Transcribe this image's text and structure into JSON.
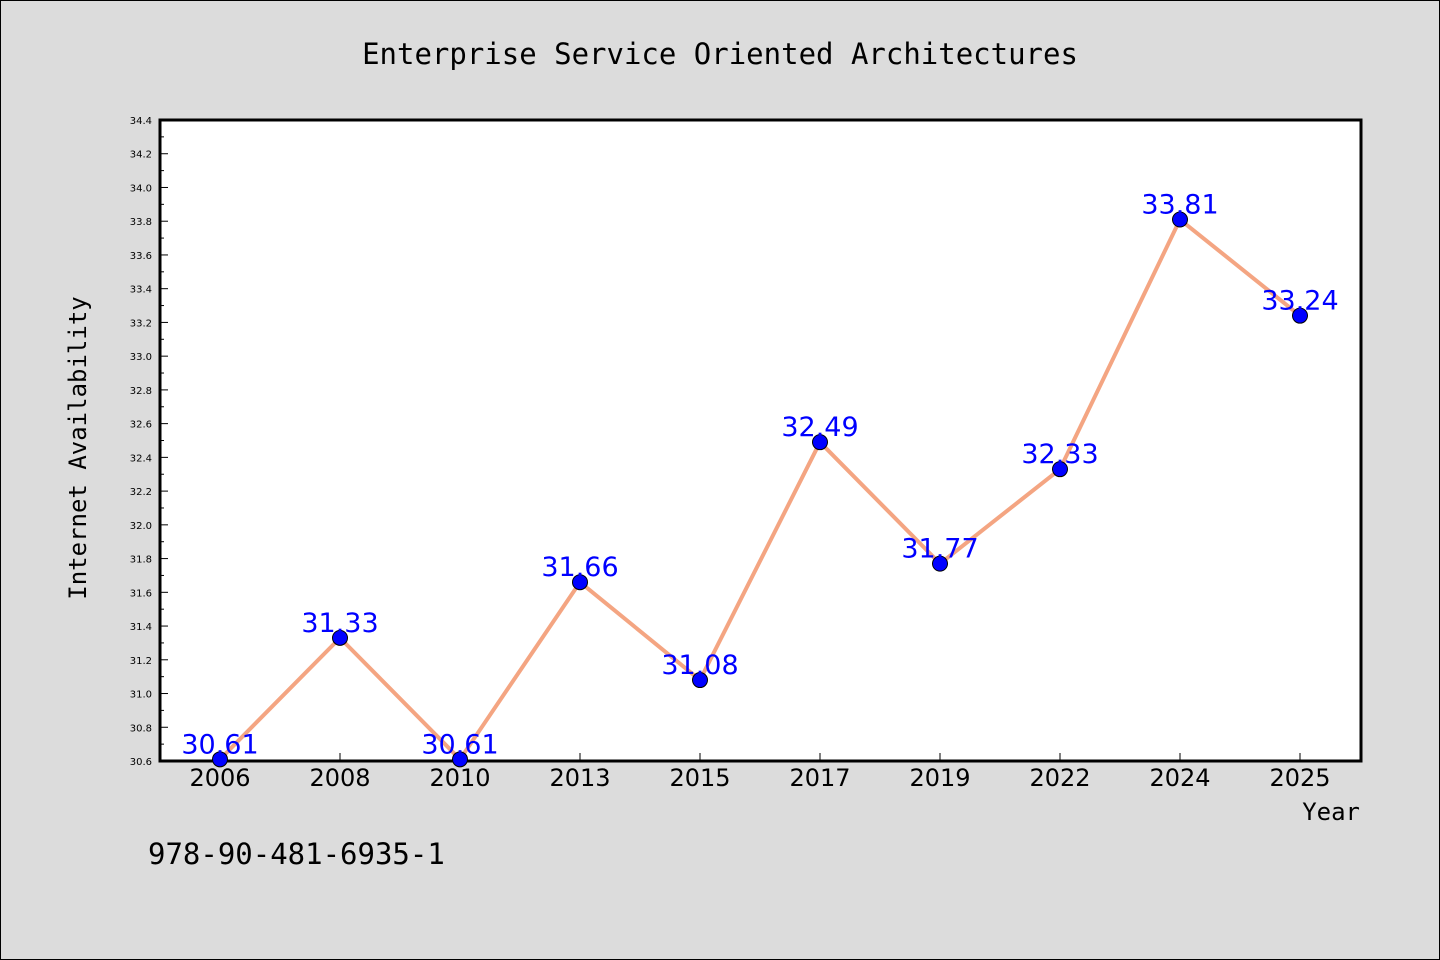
{
  "chart_data": {
    "type": "line",
    "title": "Enterprise Service Oriented Architectures",
    "xlabel": "Year",
    "ylabel": "Internet Availability",
    "categories": [
      "2006",
      "2008",
      "2010",
      "2013",
      "2015",
      "2017",
      "2019",
      "2022",
      "2024",
      "2025"
    ],
    "series": [
      {
        "values": [
          30.61,
          31.33,
          30.61,
          31.66,
          31.08,
          32.49,
          31.77,
          32.33,
          33.81,
          33.24
        ],
        "labels": [
          "30.61",
          "31.33",
          "30.61",
          "31.66",
          "31.08",
          "32.49",
          "31.77",
          "32.33",
          "33.81",
          "33.24"
        ],
        "line_color": "#f4a582",
        "marker_color": "#0000ff"
      }
    ],
    "ylim": [
      30.6,
      34.4
    ],
    "y_ticks": [
      "30.6",
      "30.8",
      "31.0",
      "31.2",
      "31.4",
      "31.6",
      "31.8",
      "32.0",
      "32.2",
      "32.4",
      "32.6",
      "32.8",
      "33.0",
      "33.2",
      "33.4",
      "33.6",
      "33.8",
      "34.0",
      "34.2",
      "34.4"
    ],
    "grid": false,
    "plot_background": "#ffffff",
    "figure_background": "#dcdcdc",
    "data_label_color": "#0000ff"
  },
  "annotation": "978-90-481-6935-1"
}
